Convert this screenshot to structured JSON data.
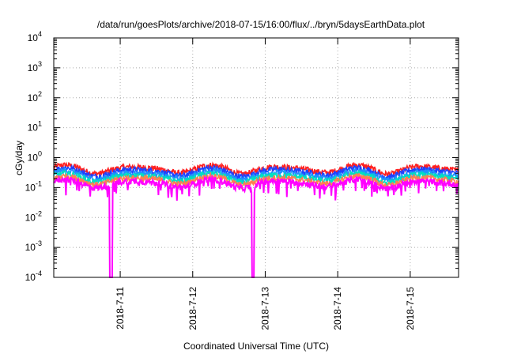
{
  "chart_data": {
    "type": "line",
    "title": "/data/run/goesPlots/archive/2018-07-15/16:00/flux/../bryn/5daysEarthData.plot",
    "xlabel": "Coordinated Universal Time (UTC)",
    "ylabel": "cGy/day",
    "y_scale": "log",
    "y_range": [
      0.0001,
      10000
    ],
    "y_ticks": [
      {
        "base": "10",
        "exp": "-4"
      },
      {
        "base": "10",
        "exp": "-3"
      },
      {
        "base": "10",
        "exp": "-2"
      },
      {
        "base": "10",
        "exp": "-1"
      },
      {
        "base": "10",
        "exp": "0"
      },
      {
        "base": "10",
        "exp": "1"
      },
      {
        "base": "10",
        "exp": "2"
      },
      {
        "base": "10",
        "exp": "3"
      },
      {
        "base": "10",
        "exp": "4"
      }
    ],
    "x_range": [
      "2018-07-10T02:00",
      "2018-07-15T16:00"
    ],
    "x_ticks": [
      {
        "label": "2018-7-11",
        "time": "2018-07-11T00:00"
      },
      {
        "label": "2018-7-12",
        "time": "2018-07-12T00:00"
      },
      {
        "label": "2018-7-13",
        "time": "2018-07-13T00:00"
      },
      {
        "label": "2018-7-14",
        "time": "2018-07-14T00:00"
      },
      {
        "label": "2018-7-15",
        "time": "2018-07-15T00:00"
      }
    ],
    "grid": true,
    "series": [
      {
        "color": "#ff2020",
        "level": 0.42
      },
      {
        "color": "#2040ff",
        "level": 0.34
      },
      {
        "color": "#1e90ff",
        "level": 0.27
      },
      {
        "color": "#00e0c0",
        "level": 0.22
      },
      {
        "color": "#ff7f50",
        "level": 0.18
      },
      {
        "color": "#ff00ff",
        "level": 0.14
      }
    ],
    "dropouts": [
      {
        "start": "2018-07-10T20:30",
        "end": "2018-07-10T21:30"
      },
      {
        "start": "2018-07-12T19:30",
        "end": "2018-07-12T20:15"
      }
    ]
  }
}
